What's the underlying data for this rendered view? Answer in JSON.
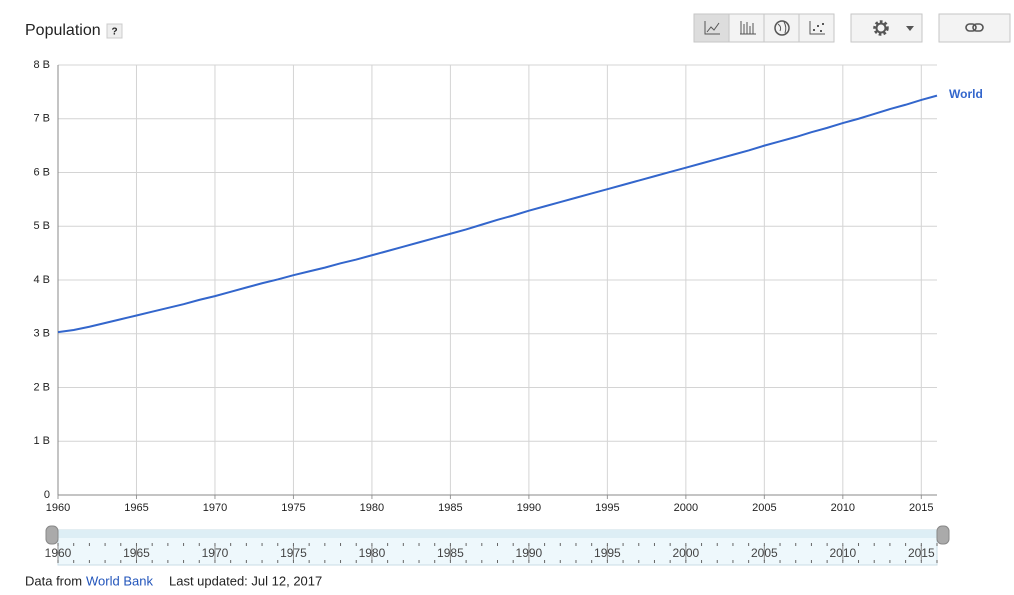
{
  "chart_data": {
    "type": "line",
    "title": "Population",
    "help": "?",
    "x": [
      1960,
      1961,
      1962,
      1963,
      1964,
      1965,
      1966,
      1967,
      1968,
      1969,
      1970,
      1971,
      1972,
      1973,
      1974,
      1975,
      1976,
      1977,
      1978,
      1979,
      1980,
      1981,
      1982,
      1983,
      1984,
      1985,
      1986,
      1987,
      1988,
      1989,
      1990,
      1991,
      1992,
      1993,
      1994,
      1995,
      1996,
      1997,
      1998,
      1999,
      2000,
      2001,
      2002,
      2003,
      2004,
      2005,
      2006,
      2007,
      2008,
      2009,
      2010,
      2011,
      2012,
      2013,
      2014,
      2015,
      2016
    ],
    "series": [
      {
        "name": "World",
        "color": "#3366cc",
        "values": [
          3.03,
          3.07,
          3.13,
          3.2,
          3.27,
          3.34,
          3.41,
          3.48,
          3.55,
          3.63,
          3.7,
          3.78,
          3.86,
          3.94,
          4.01,
          4.09,
          4.16,
          4.23,
          4.31,
          4.38,
          4.46,
          4.54,
          4.62,
          4.7,
          4.78,
          4.86,
          4.94,
          5.03,
          5.12,
          5.2,
          5.29,
          5.37,
          5.45,
          5.53,
          5.61,
          5.69,
          5.77,
          5.85,
          5.93,
          6.01,
          6.09,
          6.17,
          6.25,
          6.33,
          6.41,
          6.5,
          6.58,
          6.66,
          6.75,
          6.83,
          6.92,
          7.0,
          7.09,
          7.18,
          7.26,
          7.35,
          7.43
        ]
      }
    ],
    "xlim": [
      1960,
      2016
    ],
    "xticks": [
      1960,
      1965,
      1970,
      1975,
      1980,
      1985,
      1990,
      1995,
      2000,
      2005,
      2010,
      2015
    ],
    "ylim": [
      0,
      8
    ],
    "yticks": [
      0,
      {
        "value": 1,
        "label": "1 B"
      },
      {
        "value": 2,
        "label": "2 B"
      },
      {
        "value": 3,
        "label": "3 B"
      },
      {
        "value": 4,
        "label": "4 B"
      },
      {
        "value": 5,
        "label": "5 B"
      },
      {
        "value": 6,
        "label": "6 B"
      },
      {
        "value": 7,
        "label": "7 B"
      },
      {
        "value": 8,
        "label": "8 B"
      }
    ],
    "grid": true
  },
  "footer": {
    "prefix": "Data from",
    "source": "World Bank",
    "updated": "Last updated: Jul 12, 2017"
  }
}
